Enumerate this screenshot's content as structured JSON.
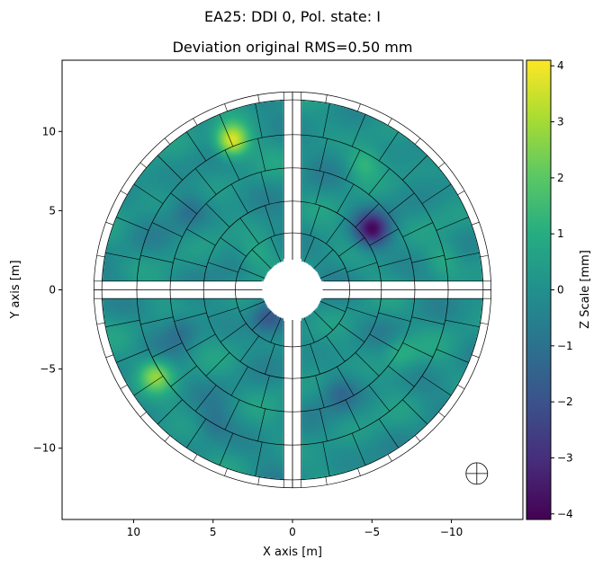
{
  "suptitle": "EA25: DDI 0, Pol. state: I",
  "chart_data": {
    "type": "heatmap",
    "title": "Deviation original RMS=0.50 mm",
    "xlabel": "X axis [m]",
    "ylabel": "Y axis [m]",
    "xlim": [
      14.5,
      -14.5
    ],
    "ylim": [
      -14.5,
      14.5
    ],
    "x_ticks": [
      10,
      5,
      0,
      -5,
      -10
    ],
    "x_tick_labels": [
      "10",
      "5",
      "0",
      "−5",
      "−10"
    ],
    "y_ticks": [
      10,
      5,
      0,
      -5,
      -10
    ],
    "y_tick_labels": [
      "10",
      "5",
      "0",
      "−5",
      "−10"
    ],
    "colorbar": {
      "label": "Z Scale [mm]",
      "range": [
        -4.1,
        4.1
      ],
      "ticks": [
        4,
        3,
        2,
        1,
        0,
        -1,
        -2,
        -3,
        -4
      ],
      "tick_labels": [
        "4",
        "3",
        "2",
        "1",
        "0",
        "−1",
        "−2",
        "−3",
        "−4"
      ],
      "colormap": "viridis"
    },
    "dish": {
      "outer_radius_m": 12.0,
      "inner_radius_m": 1.9,
      "ring_radii_m": [
        3.6,
        5.6,
        7.7,
        9.8,
        12.0,
        12.5
      ],
      "panels_per_quadrant": [
        4,
        5,
        6,
        7,
        8,
        9
      ],
      "feed_leg_halfwidth_m": 0.55,
      "rms_mm": 0.5
    },
    "features": [
      {
        "x": 3.8,
        "y": 9.4,
        "value_mm": 4.0
      },
      {
        "x": -5.0,
        "y": 3.8,
        "value_mm": -3.4
      },
      {
        "x": 8.6,
        "y": -5.4,
        "value_mm": 2.4
      },
      {
        "x": 1.5,
        "y": -1.8,
        "value_mm": -1.6
      },
      {
        "x": -4.5,
        "y": 8.0,
        "value_mm": 1.2
      },
      {
        "x": -6.8,
        "y": -4.0,
        "value_mm": 1.1
      },
      {
        "x": 6.5,
        "y": 5.0,
        "value_mm": -0.9
      },
      {
        "x": -3.0,
        "y": -6.5,
        "value_mm": -1.0
      },
      {
        "x": 2.3,
        "y": 2.2,
        "value_mm": 1.0
      },
      {
        "x": 7.0,
        "y": -2.5,
        "value_mm": -1.0
      },
      {
        "x": -9.5,
        "y": 2.0,
        "value_mm": 0.9
      },
      {
        "x": 5.0,
        "y": -8.5,
        "value_mm": -0.8
      }
    ]
  },
  "colors": {
    "background": "#ffffff",
    "grid": "#000000"
  },
  "icons": {
    "marker": "crosshair-circle-icon"
  }
}
